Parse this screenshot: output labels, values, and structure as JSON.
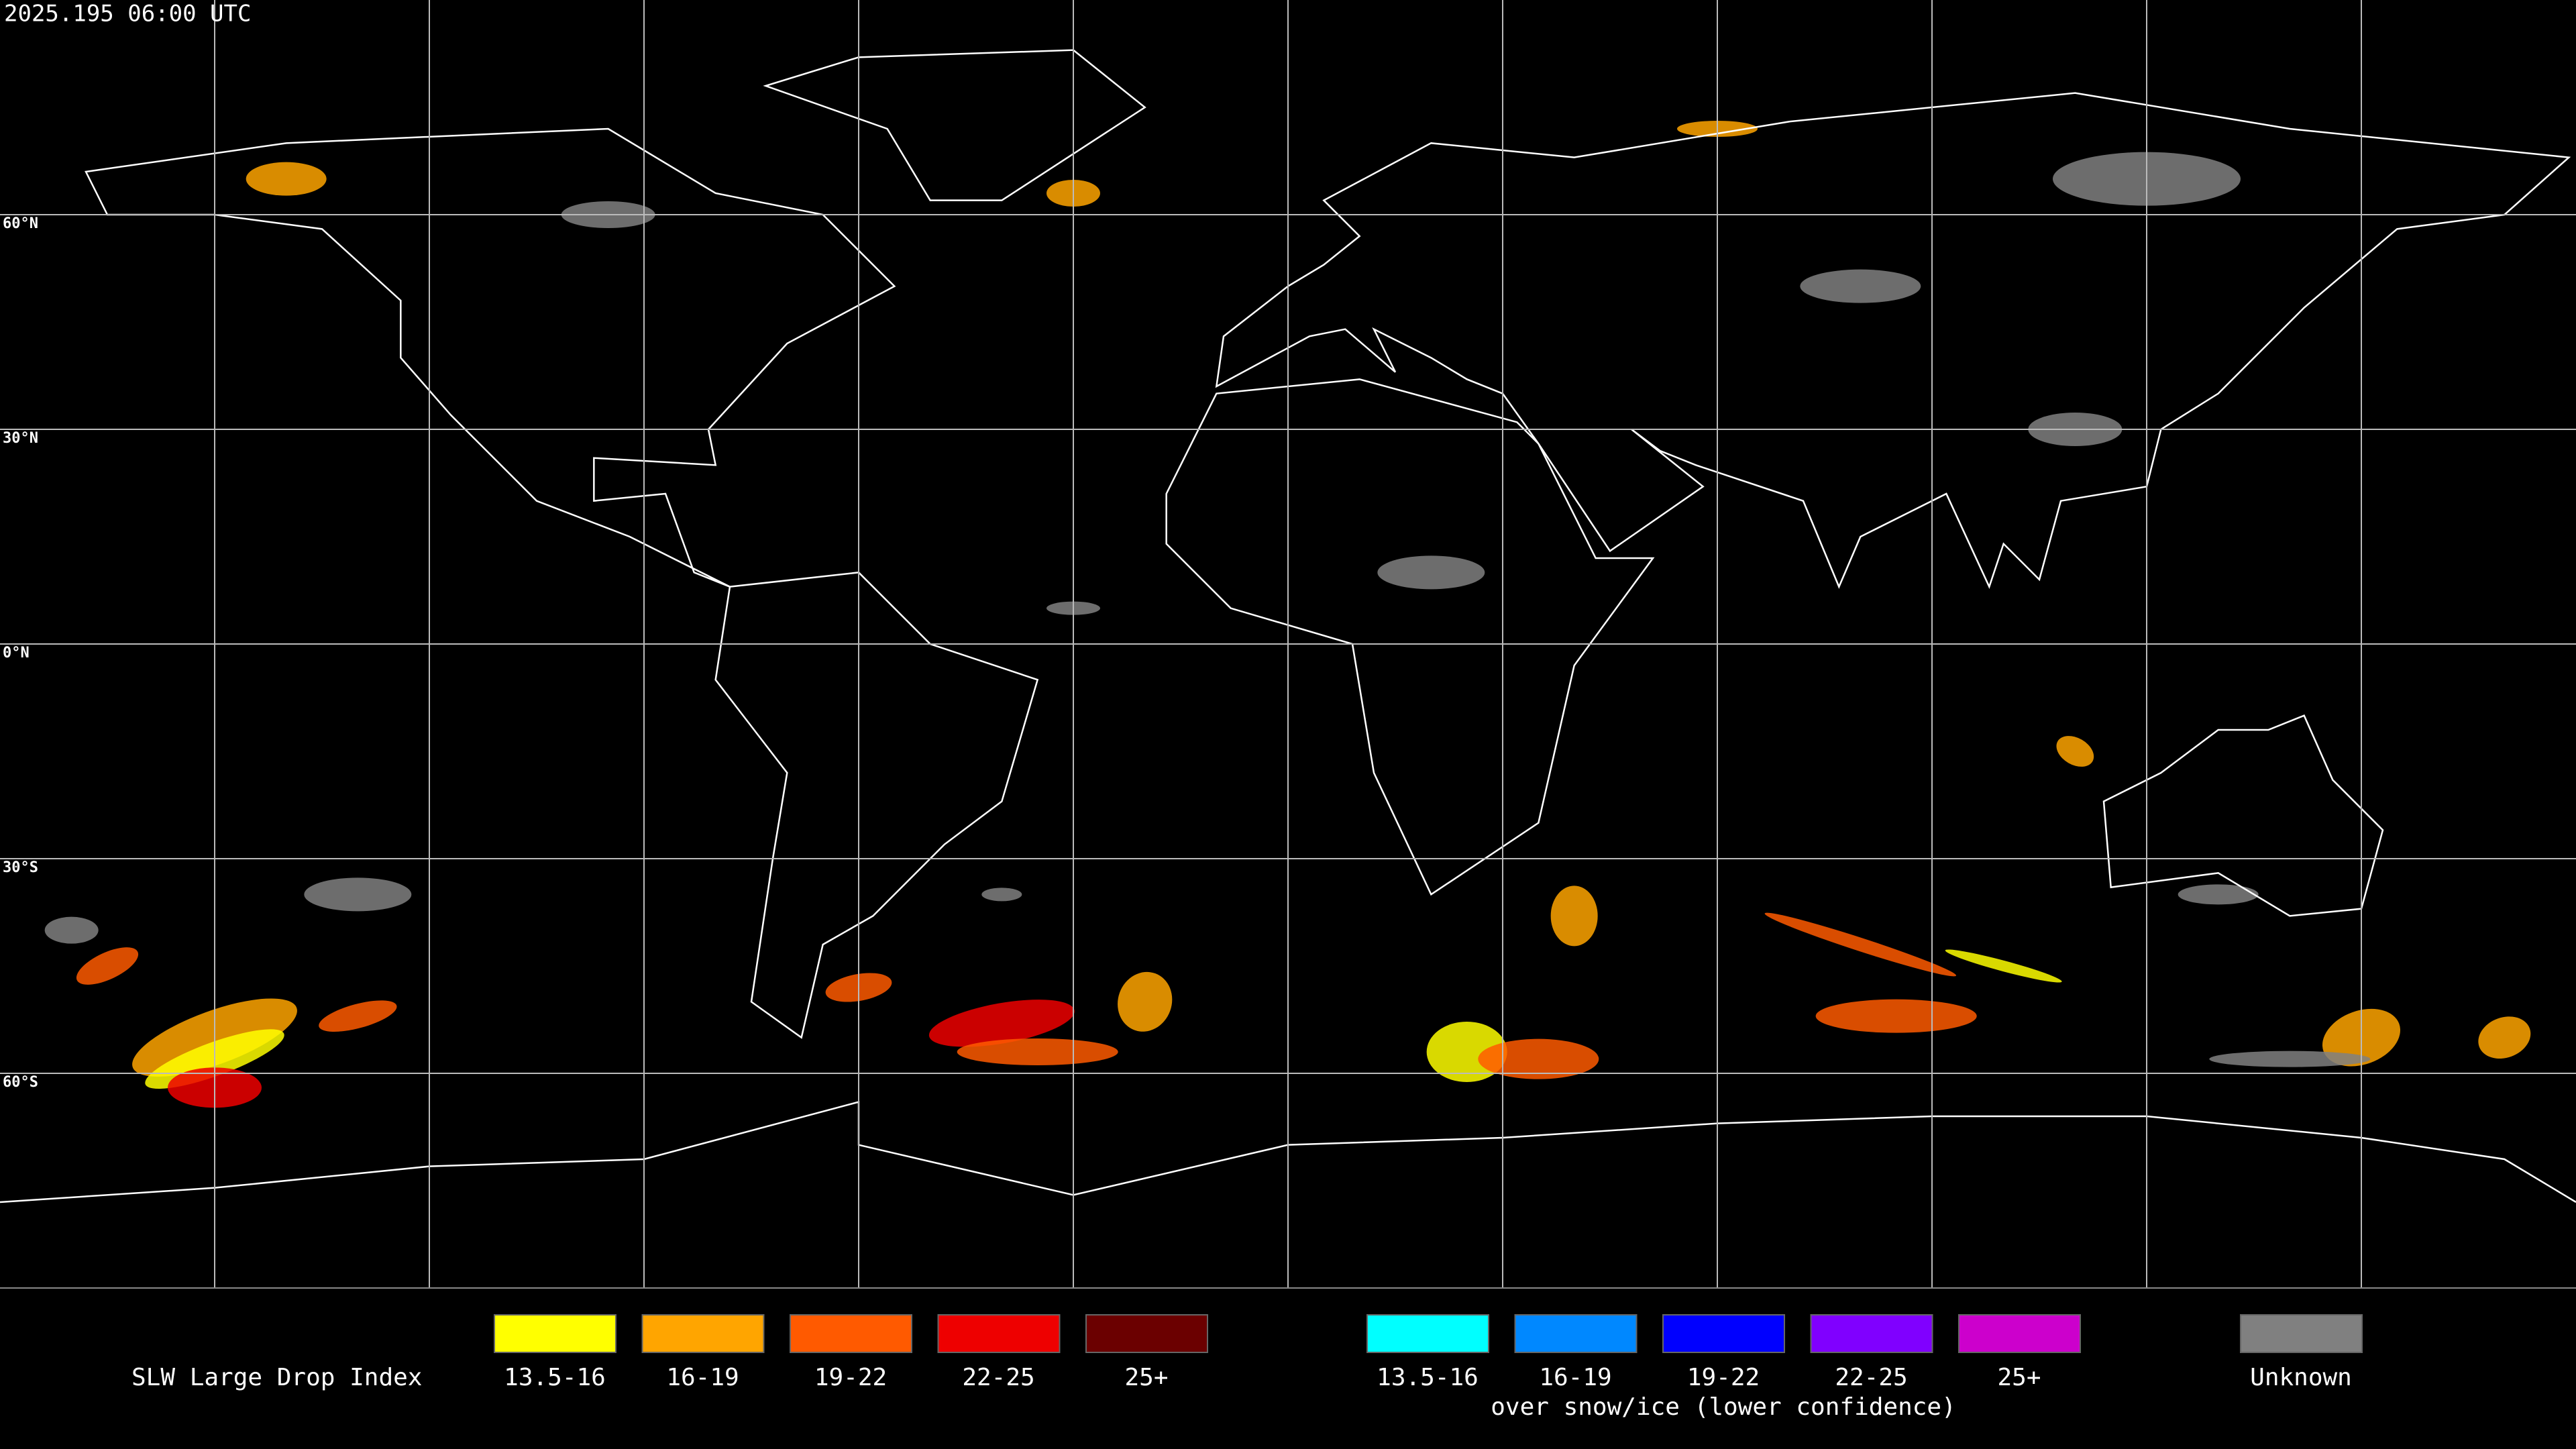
{
  "header": {
    "timestamp": "2025.195 06:00 UTC"
  },
  "map": {
    "latitude_labels": [
      "60°N",
      "30°N",
      "0°N",
      "30°S",
      "60°S"
    ]
  },
  "legend": {
    "title": "SLW Large Drop Index",
    "liquid": [
      {
        "label": "13.5-16",
        "color": "#ffff00"
      },
      {
        "label": "16-19",
        "color": "#ffa500"
      },
      {
        "label": "19-22",
        "color": "#ff5a00"
      },
      {
        "label": "22-25",
        "color": "#ee0000"
      },
      {
        "label": "25+",
        "color": "#6b0000"
      }
    ],
    "snow_ice": [
      {
        "label": "13.5-16",
        "color": "#00ffff"
      },
      {
        "label": "16-19",
        "color": "#0088ff"
      },
      {
        "label": "19-22",
        "color": "#0000ff"
      },
      {
        "label": "22-25",
        "color": "#8000ff"
      },
      {
        "label": "25+",
        "color": "#cc00cc"
      }
    ],
    "snow_ice_note": "over snow/ice (lower confidence)",
    "unknown": {
      "label": "Unknown",
      "color": "#808080"
    }
  }
}
